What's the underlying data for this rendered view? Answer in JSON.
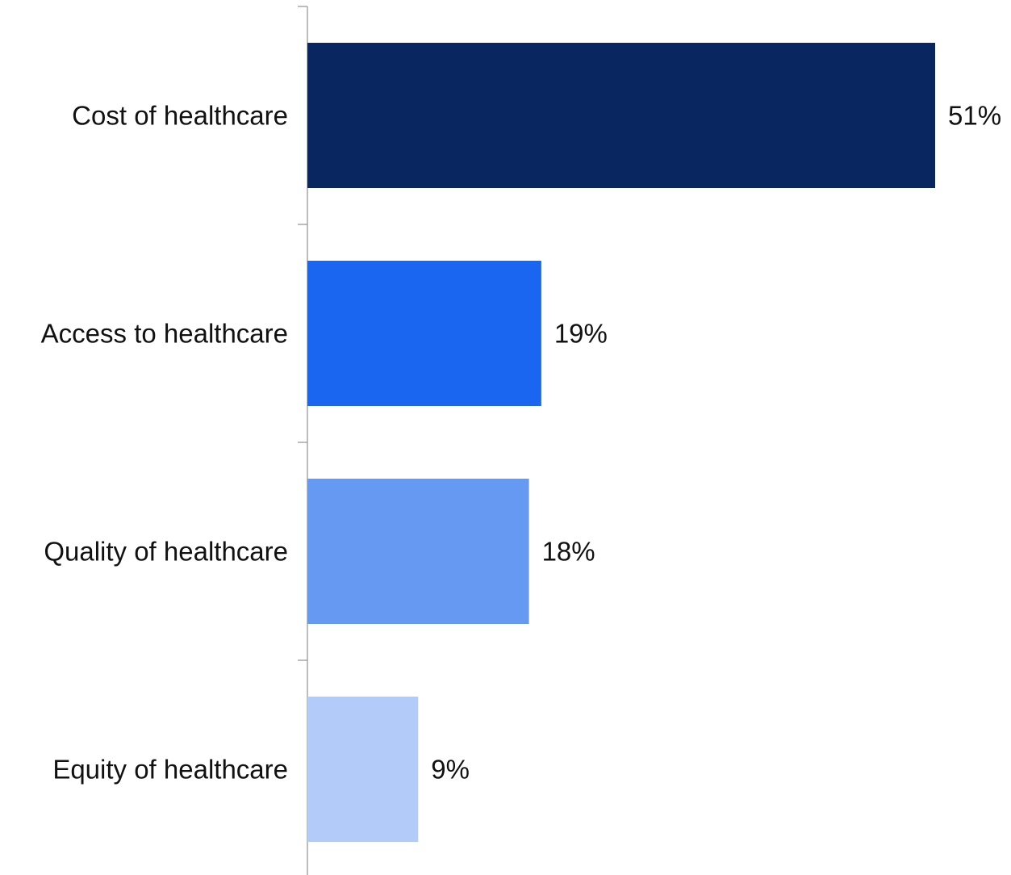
{
  "chart_data": {
    "type": "bar",
    "orientation": "horizontal",
    "categories": [
      "Cost of healthcare",
      "Access to healthcare",
      "Quality of healthcare",
      "Equity of healthcare"
    ],
    "values": [
      51,
      19,
      18,
      9
    ],
    "value_labels": [
      "51%",
      "19%",
      "18%",
      "9%"
    ],
    "unit": "%",
    "xlim": [
      0,
      53
    ],
    "grid": false,
    "legend": "none",
    "colors": [
      "#0a2660",
      "#1a66f0",
      "#6699f2",
      "#b3cbf9"
    ],
    "axis_color": "#999999"
  }
}
